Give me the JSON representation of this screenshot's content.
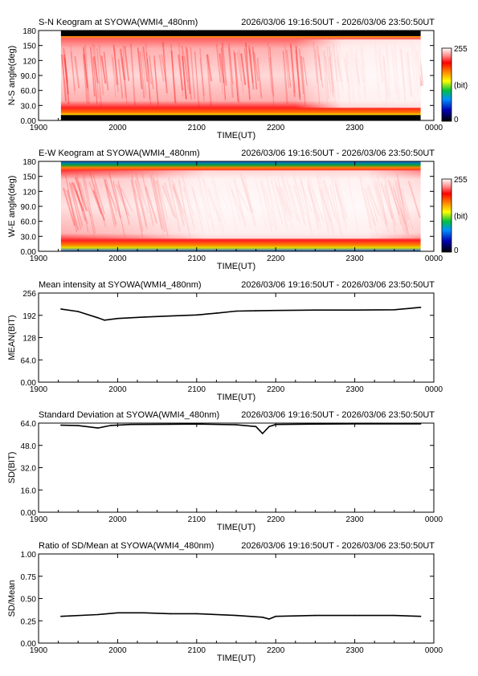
{
  "station": "SYOWA(WMI4_480nm)",
  "period": "2026/03/06 19:16:50UT - 2026/03/06 23:50:50UT",
  "chart_data": [
    {
      "type": "heatmap",
      "title": "S-N Keogram at SYOWA(WMI4_480nm)",
      "xlabel": "TIME(UT)",
      "ylabel": "N-S angle(deg)",
      "x_ticks": [
        "1900",
        "2000",
        "2100",
        "2200",
        "2300",
        "0000"
      ],
      "y_ticks": [
        "0.00",
        "30.0",
        "60.0",
        "90.0",
        "120",
        "150",
        "180"
      ],
      "ylim": [
        0,
        180
      ],
      "colorbar": {
        "min_label": "0",
        "max_label": "255",
        "unit_label": "(bit)"
      }
    },
    {
      "type": "heatmap",
      "title": "E-W Keogram at SYOWA(WMI4_480nm)",
      "xlabel": "TIME(UT)",
      "ylabel": "W-E angle(deg)",
      "x_ticks": [
        "1900",
        "2000",
        "2100",
        "2200",
        "2300",
        "0000"
      ],
      "y_ticks": [
        "0.00",
        "30.0",
        "60.0",
        "90.0",
        "120",
        "150",
        "180"
      ],
      "ylim": [
        0,
        180
      ],
      "colorbar": {
        "min_label": "0",
        "max_label": "255",
        "unit_label": "(bit)"
      }
    },
    {
      "type": "line",
      "title": "Mean intensity at SYOWA(WMI4_480nm)",
      "xlabel": "TIME(UT)",
      "ylabel": "MEAN(BIT)",
      "x_ticks": [
        "1900",
        "2000",
        "2100",
        "2200",
        "2300",
        "0000"
      ],
      "y_ticks": [
        "0.00",
        "64.0",
        "128",
        "192",
        "256"
      ],
      "ylim": [
        0,
        256
      ],
      "x": [
        "19:17",
        "19:30",
        "19:45",
        "19:50",
        "20:00",
        "20:20",
        "20:40",
        "21:00",
        "21:15",
        "21:30",
        "21:45",
        "22:00",
        "22:30",
        "23:00",
        "23:30",
        "23:45",
        "23:50"
      ],
      "values": [
        210,
        203,
        185,
        178,
        183,
        187,
        190,
        193,
        198,
        204,
        205,
        206,
        207,
        207,
        208,
        213,
        215
      ]
    },
    {
      "type": "line",
      "title": "Standard Deviation at SYOWA(WMI4_480nm)",
      "xlabel": "TIME(UT)",
      "ylabel": "SD(BIT)",
      "x_ticks": [
        "1900",
        "2000",
        "2100",
        "2200",
        "2300",
        "0000"
      ],
      "y_ticks": [
        "0.00",
        "16.0",
        "32.0",
        "48.0",
        "64.0"
      ],
      "ylim": [
        0,
        64
      ],
      "x": [
        "19:17",
        "19:30",
        "19:45",
        "19:55",
        "20:10",
        "20:40",
        "21:00",
        "21:30",
        "21:45",
        "21:50",
        "21:55",
        "22:00",
        "22:30",
        "23:00",
        "23:30",
        "23:50"
      ],
      "values": [
        62.5,
        62.2,
        60.5,
        62.3,
        63.0,
        63.2,
        63.3,
        62.8,
        61.5,
        56.5,
        61.5,
        63.0,
        63.3,
        63.5,
        63.5,
        63.5
      ]
    },
    {
      "type": "line",
      "title": "Ratio of SD/Mean at SYOWA(WMI4_480nm)",
      "xlabel": "TIME(UT)",
      "ylabel": "SD/Mean",
      "x_ticks": [
        "1900",
        "2000",
        "2100",
        "2200",
        "2300",
        "0000"
      ],
      "y_ticks": [
        "0.00",
        "0.25",
        "0.50",
        "0.75",
        "1.00"
      ],
      "ylim": [
        0,
        1
      ],
      "x": [
        "19:17",
        "19:45",
        "20:00",
        "20:20",
        "20:40",
        "21:00",
        "21:30",
        "21:50",
        "21:55",
        "22:00",
        "22:30",
        "23:00",
        "23:30",
        "23:50"
      ],
      "values": [
        0.3,
        0.32,
        0.34,
        0.34,
        0.33,
        0.33,
        0.31,
        0.29,
        0.27,
        0.3,
        0.31,
        0.31,
        0.31,
        0.3
      ]
    }
  ]
}
